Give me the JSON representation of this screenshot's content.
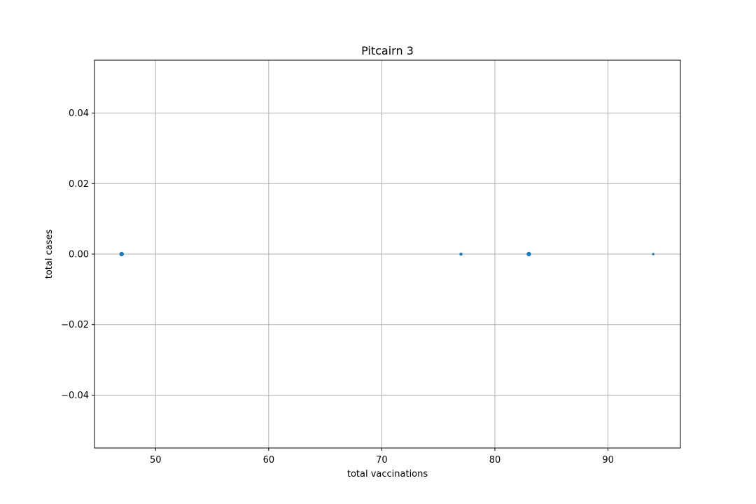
{
  "chart_data": {
    "type": "scatter",
    "title": "Pitcairn 3",
    "xlabel": "total vaccinations",
    "ylabel": "total cases",
    "xlim": [
      44.6,
      96.4
    ],
    "ylim": [
      -0.055,
      0.055
    ],
    "xticks": [
      50,
      60,
      70,
      80,
      90
    ],
    "xtick_labels": [
      "50",
      "60",
      "70",
      "80",
      "90"
    ],
    "yticks": [
      -0.04,
      -0.02,
      0.0,
      0.02,
      0.04
    ],
    "ytick_labels": [
      "−0.04",
      "−0.02",
      "0.00",
      "0.02",
      "0.04"
    ],
    "grid": true,
    "legend": "none",
    "marker_color": "#1f77b4",
    "grid_color": "#b0b0b0",
    "points": [
      {
        "x": 47,
        "y": 0,
        "size": 3
      },
      {
        "x": 77,
        "y": 0,
        "size": 2
      },
      {
        "x": 83,
        "y": 0,
        "size": 3
      },
      {
        "x": 94,
        "y": 0,
        "size": 1.5
      }
    ]
  }
}
